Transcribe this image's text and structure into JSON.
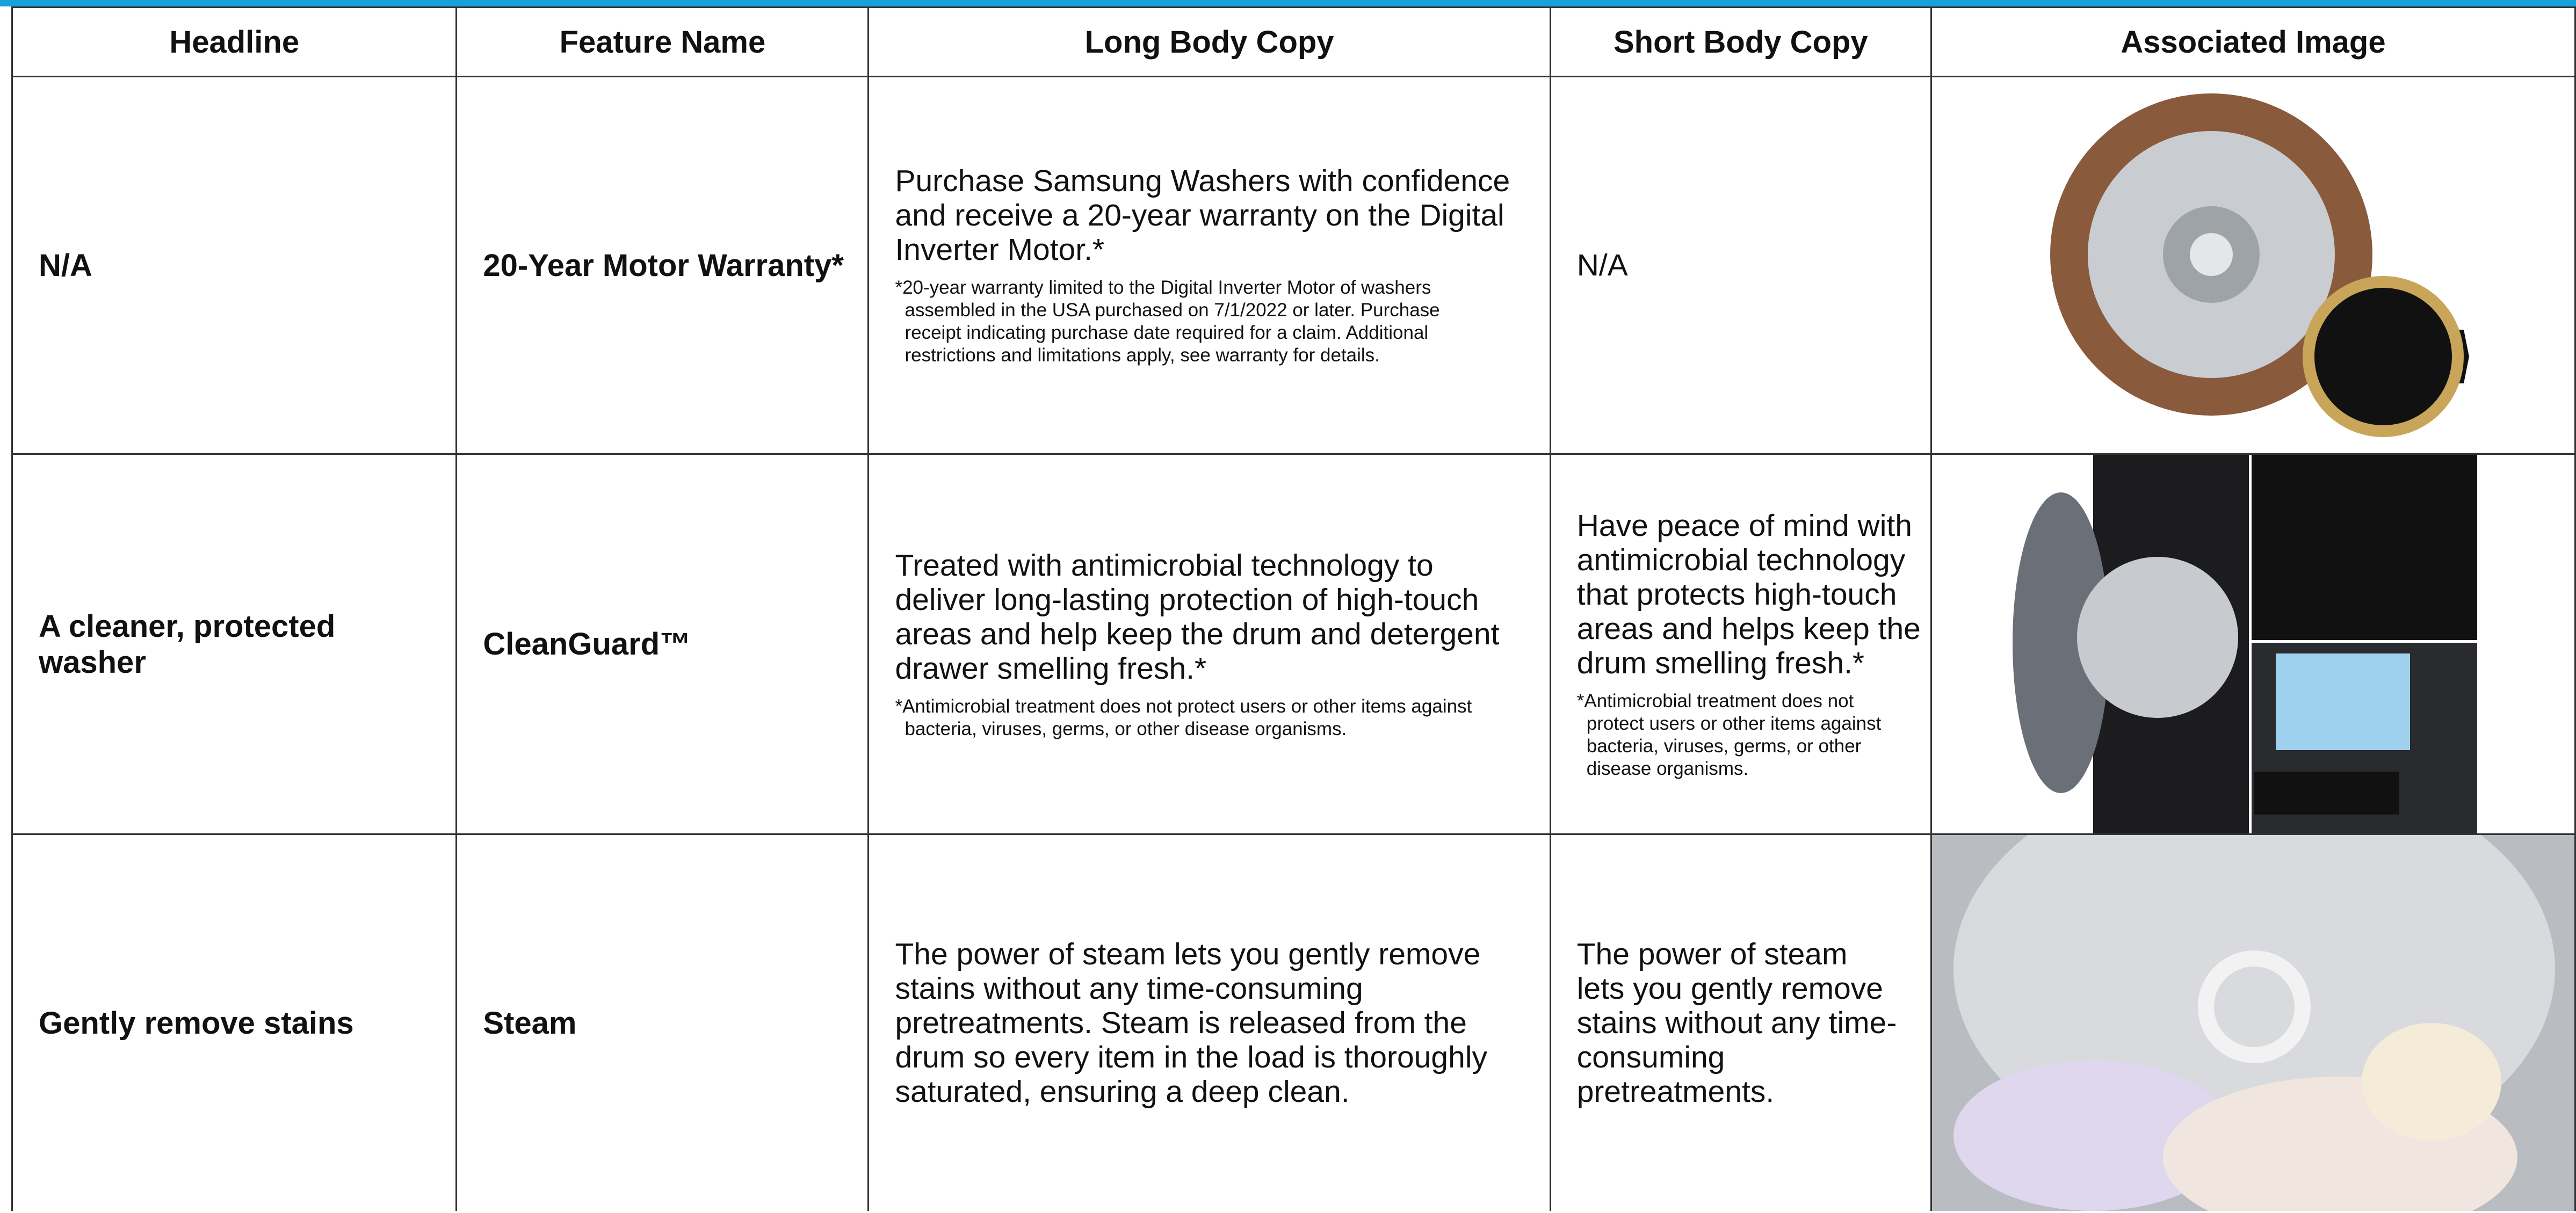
{
  "table": {
    "headers": [
      "Headline",
      "Feature Name",
      "Long Body Copy",
      "Short Body Copy",
      "Associated Image"
    ],
    "rows": [
      {
        "headline": "N/A",
        "feature_name": "20-Year Motor Warranty*",
        "long_body": {
          "text": "Purchase Samsung Washers with confidence and receive a 20-year warranty on the Digital Inverter Motor.*",
          "note": "*20-year warranty limited to the Digital Inverter Motor of washers assembled in the USA purchased on 7/1/2022 or later. Purchase receipt indicating purchase date required for a claim. Additional restrictions and limitations apply, see warranty for details."
        },
        "short_body": {
          "text": "N/A"
        }
      },
      {
        "headline": "A cleaner, protected washer",
        "feature_name": "CleanGuard™",
        "long_body": {
          "text": "Treated with antimicrobial technology to deliver long-lasting protection of high-touch areas and help keep the drum and detergent drawer smelling fresh.*",
          "note": "*Antimicrobial treatment does not protect users or other items against bacteria, viruses, germs, or other disease organisms."
        },
        "short_body": {
          "text": "Have peace of mind with antimicrobial technology that protects high-touch areas and helps keep the drum smelling fresh.*",
          "note": "*Antimicrobial treatment does not protect users or other items against bacteria, viruses, germs, or other disease organisms."
        }
      },
      {
        "headline": "Gently remove stains",
        "feature_name": "Steam",
        "long_body": {
          "text": "The power of steam lets you gently remove stains without any time-consuming pretreatments. Steam is released from the drum so every item in the load is thoroughly saturated, ensuring a deep clean."
        },
        "short_body": {
          "text": "The power of steam lets you gently remove stains without any time-consuming pretreatments."
        }
      }
    ]
  }
}
